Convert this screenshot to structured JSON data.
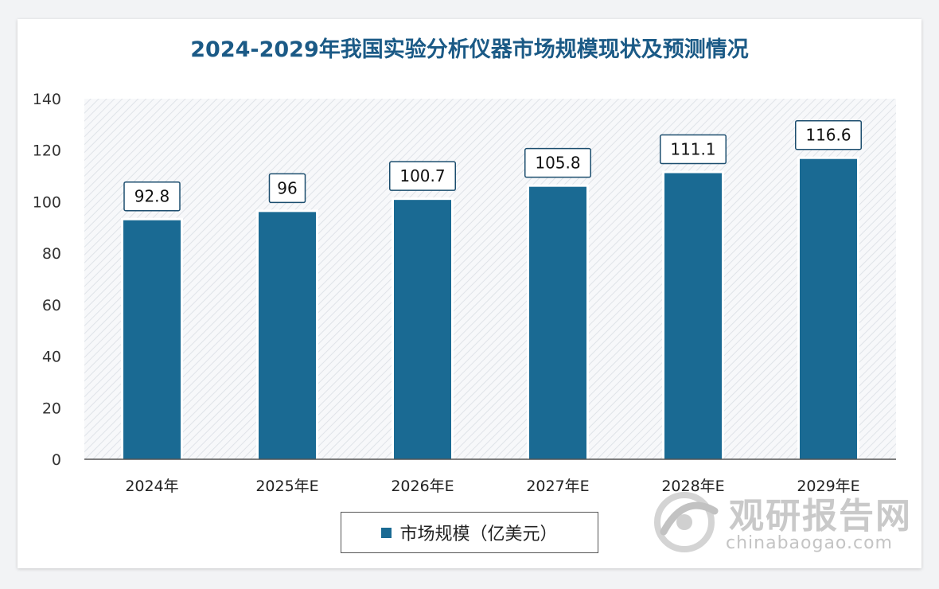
{
  "chart_data": {
    "type": "bar",
    "title": "2024-2029年我国实验分析仪器市场规模现状及预测情况",
    "categories": [
      "2024年",
      "2025年E",
      "2026年E",
      "2027年E",
      "2028年E",
      "2029年E"
    ],
    "series": [
      {
        "name": "市场规模（亿美元）",
        "values": [
          92.8,
          96,
          100.7,
          105.8,
          111.1,
          116.6
        ]
      }
    ],
    "data_labels": [
      "92.8",
      "96",
      "100.7",
      "105.8",
      "111.1",
      "116.6"
    ],
    "ylim": [
      0,
      140
    ],
    "yticks": [
      0,
      20,
      40,
      60,
      80,
      100,
      120,
      140
    ],
    "legend_position": "bottom",
    "bar_color": "#1a6a93"
  },
  "watermark": {
    "name": "观研报告网",
    "url": "chinabaogao.com"
  }
}
